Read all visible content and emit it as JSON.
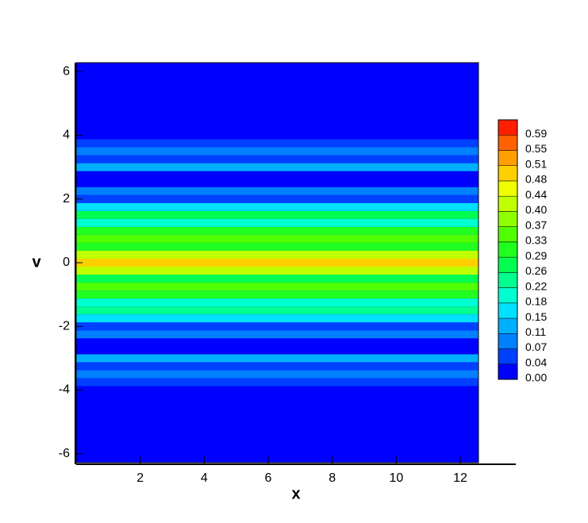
{
  "chart_data": {
    "type": "contour",
    "x_label": "x",
    "y_label": "v",
    "xlim": [
      0,
      12.57
    ],
    "ylim": [
      -6.28,
      6.28
    ],
    "xticks": [
      2,
      4,
      6,
      8,
      10,
      12
    ],
    "yticks": [
      -6,
      -4,
      -2,
      0,
      2,
      4,
      6
    ],
    "y": [
      -4,
      -3.75,
      -3.5,
      -3.25,
      -3,
      -2.75,
      -2.5,
      -2.25,
      -2,
      -1.75,
      -1.5,
      -1.25,
      -1,
      -0.75,
      -0.5,
      -0.25,
      0,
      0.25,
      0.5,
      0.75,
      1,
      1.25,
      1.5,
      1.75,
      2,
      2.25,
      2.5,
      2.75,
      3,
      3.25,
      3.5,
      3.75,
      4
    ],
    "z": [
      0.03,
      0.05,
      0.1,
      0.05,
      0.12,
      0.03,
      0.02,
      0.1,
      0.05,
      0.15,
      0.25,
      0.2,
      0.3,
      0.35,
      0.28,
      0.4,
      0.5,
      0.42,
      0.3,
      0.36,
      0.3,
      0.2,
      0.26,
      0.15,
      0.05,
      0.1,
      0.02,
      0.03,
      0.12,
      0.05,
      0.1,
      0.05,
      0.03
    ],
    "colorbar": {
      "levels": [
        {
          "value": 0,
          "label": "0.00"
        },
        0.04,
        0.07,
        0.11,
        0.15,
        0.18,
        0.22,
        0.26,
        0.29,
        0.33,
        0.37,
        {
          "value": 0.4,
          "label": "0.40"
        },
        0.44,
        0.48,
        0.51,
        0.55,
        0.59
      ],
      "colors": [
        "#0000ff",
        "#0040ff",
        "#0080ff",
        "#00b0ff",
        "#00e0ff",
        "#00ffd0",
        "#00ff90",
        "#00ff50",
        "#20ff20",
        "#50ff00",
        "#90ff00",
        "#c0ff00",
        "#f0ff00",
        "#ffd000",
        "#ffa000",
        "#ff6000",
        "#ff2000"
      ]
    }
  }
}
